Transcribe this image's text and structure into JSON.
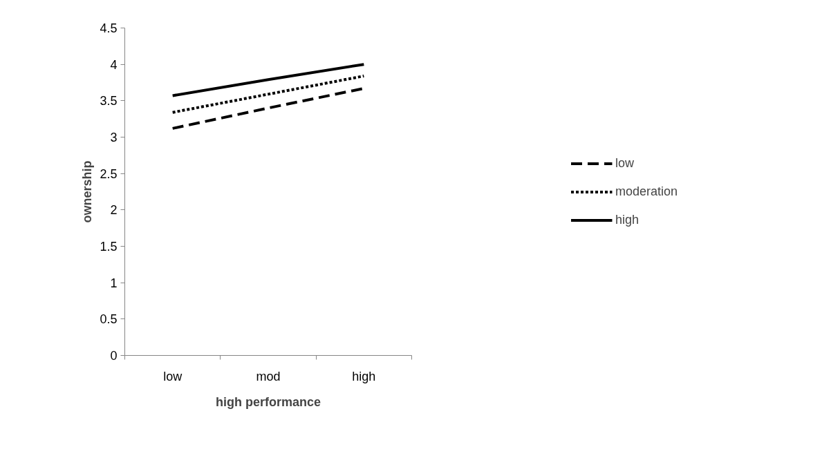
{
  "chart_data": {
    "type": "line",
    "xlabel": "high performance",
    "ylabel": "ownership",
    "categories": [
      "low",
      "mod",
      "high"
    ],
    "series": [
      {
        "name": "low",
        "color": "#000000",
        "values": [
          3.12,
          3.4,
          3.67
        ],
        "line_style": "dashed"
      },
      {
        "name": "moderation",
        "color": "#000000",
        "values": [
          3.34,
          3.59,
          3.84
        ],
        "line_style": "dotted"
      },
      {
        "name": "high",
        "color": "#000000",
        "values": [
          3.57,
          3.79,
          4.0
        ],
        "line_style": "solid"
      }
    ],
    "ylim": [
      0,
      4.5
    ],
    "yticks": [
      0,
      0.5,
      1,
      1.5,
      2,
      2.5,
      3,
      3.5,
      4,
      4.5
    ],
    "legend": "right",
    "grid": false,
    "marker": "none"
  }
}
